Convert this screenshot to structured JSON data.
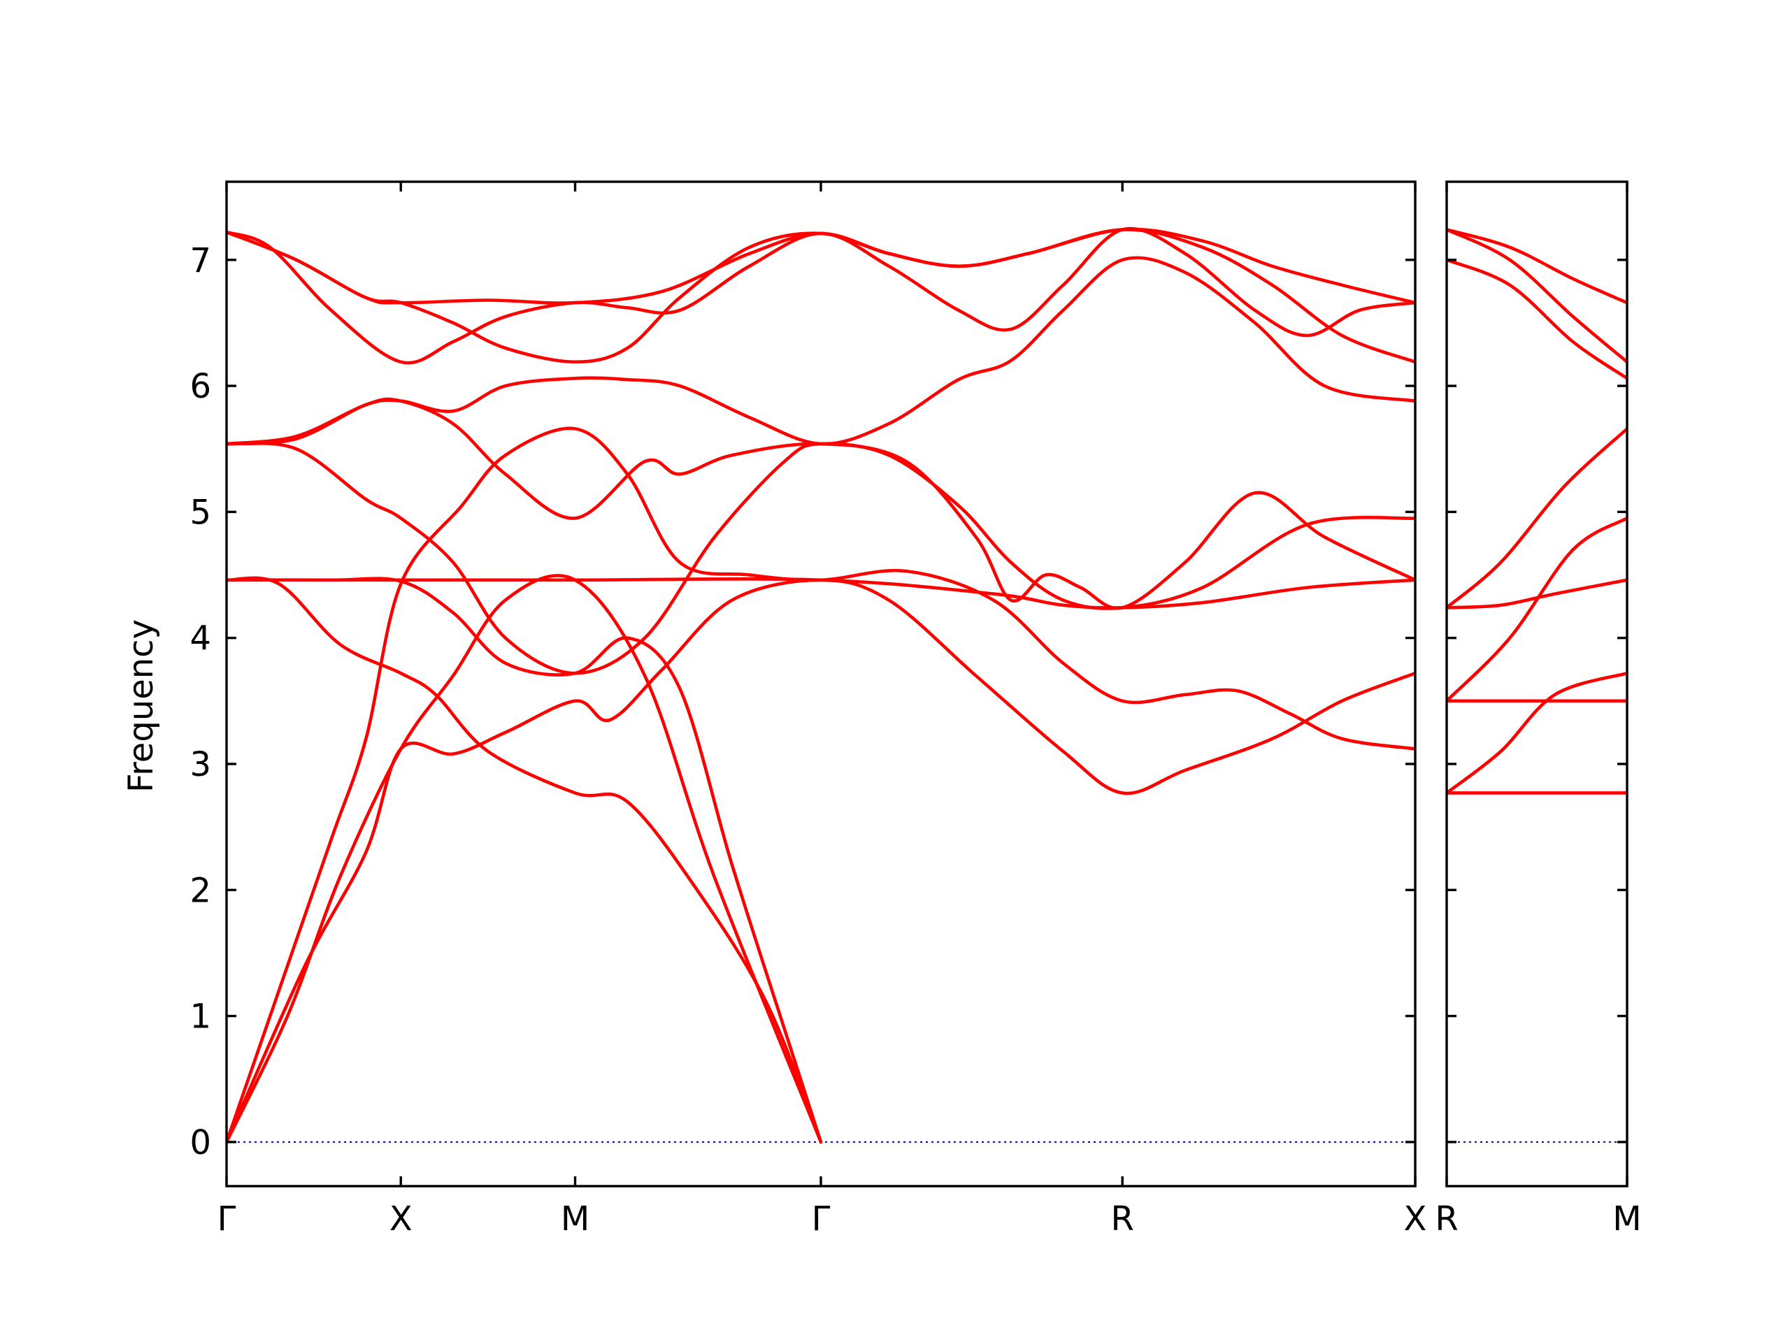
{
  "colors": {
    "band": "#ff0000",
    "zero_line": "#0000cd",
    "axis": "#000000"
  },
  "chart_data": {
    "type": "line",
    "title": "",
    "ylabel": "Frequency",
    "ylim": [
      -0.35,
      7.62
    ],
    "yticks": [
      0,
      1,
      2,
      3,
      4,
      5,
      6,
      7
    ],
    "grid": false,
    "legend": "none",
    "zero_line": {
      "y": 0,
      "style": "dotted"
    },
    "panels": [
      {
        "name": "panel-main",
        "xlim": [
          0,
          6.82
        ],
        "xticks": [
          {
            "x": 0,
            "label": "Γ"
          },
          {
            "x": 1.0,
            "label": "X"
          },
          {
            "x": 2.0,
            "label": "M"
          },
          {
            "x": 3.41,
            "label": "Γ"
          },
          {
            "x": 5.14,
            "label": "R"
          },
          {
            "x": 6.82,
            "label": "X"
          }
        ],
        "bands": [
          [
            [
              0,
              0
            ],
            [
              0.3,
              1.2
            ],
            [
              0.6,
              2.4
            ],
            [
              0.8,
              3.2
            ],
            [
              1.0,
              4.43
            ],
            [
              1.35,
              5.05
            ],
            [
              1.6,
              5.45
            ],
            [
              2.0,
              5.66
            ],
            [
              2.3,
              5.3
            ],
            [
              2.6,
              4.6
            ],
            [
              3.0,
              4.5
            ],
            [
              3.41,
              4.46
            ],
            [
              3.9,
              4.53
            ],
            [
              4.4,
              4.3
            ],
            [
              4.8,
              3.8
            ],
            [
              5.14,
              3.5
            ],
            [
              5.5,
              3.55
            ],
            [
              5.8,
              3.58
            ],
            [
              6.1,
              3.4
            ],
            [
              6.4,
              3.2
            ],
            [
              6.82,
              3.12
            ]
          ],
          [
            [
              0,
              0
            ],
            [
              0.35,
              1.0
            ],
            [
              0.65,
              2.1
            ],
            [
              1.0,
              3.12
            ],
            [
              1.3,
              3.7
            ],
            [
              1.6,
              4.3
            ],
            [
              2.0,
              4.46
            ],
            [
              2.4,
              3.7
            ],
            [
              2.8,
              2.1
            ],
            [
              3.41,
              0
            ]
          ],
          [
            [
              0,
              0
            ],
            [
              0.45,
              1.4
            ],
            [
              0.8,
              2.3
            ],
            [
              1.0,
              3.12
            ],
            [
              1.3,
              3.08
            ],
            [
              1.6,
              3.25
            ],
            [
              2.0,
              3.5
            ],
            [
              2.2,
              3.35
            ],
            [
              2.5,
              3.75
            ],
            [
              2.9,
              4.3
            ],
            [
              3.41,
              4.46
            ],
            [
              3.8,
              4.3
            ],
            [
              4.3,
              3.7
            ],
            [
              4.8,
              3.1
            ],
            [
              5.14,
              2.77
            ],
            [
              5.5,
              2.95
            ],
            [
              6.0,
              3.2
            ],
            [
              6.4,
              3.5
            ],
            [
              6.82,
              3.72
            ]
          ],
          [
            [
              0,
              4.46
            ],
            [
              0.3,
              4.43
            ],
            [
              0.65,
              3.95
            ],
            [
              1.0,
              3.72
            ],
            [
              1.2,
              3.55
            ],
            [
              1.5,
              3.1
            ],
            [
              2.0,
              2.77
            ],
            [
              2.3,
              2.7
            ],
            [
              2.7,
              2.0
            ],
            [
              3.1,
              1.1
            ],
            [
              3.41,
              0
            ]
          ],
          [
            [
              0,
              4.46
            ],
            [
              0.6,
              4.46
            ],
            [
              1.0,
              4.45
            ],
            [
              1.3,
              4.2
            ],
            [
              1.6,
              3.8
            ],
            [
              2.0,
              3.72
            ],
            [
              2.3,
              4.0
            ],
            [
              2.6,
              3.6
            ],
            [
              2.9,
              2.2
            ],
            [
              3.2,
              0.9
            ],
            [
              3.41,
              0
            ]
          ],
          [
            [
              0,
              4.46
            ],
            [
              1.0,
              4.46
            ],
            [
              2.0,
              4.46
            ],
            [
              3.41,
              4.46
            ],
            [
              4.4,
              4.35
            ],
            [
              4.8,
              4.26
            ],
            [
              5.14,
              4.24
            ],
            [
              5.6,
              4.28
            ],
            [
              6.2,
              4.4
            ],
            [
              6.82,
              4.46
            ]
          ],
          [
            [
              0,
              5.54
            ],
            [
              0.4,
              5.5
            ],
            [
              0.8,
              5.1
            ],
            [
              1.0,
              4.95
            ],
            [
              1.3,
              4.6
            ],
            [
              1.6,
              4.0
            ],
            [
              2.0,
              3.72
            ],
            [
              2.4,
              4.0
            ],
            [
              2.8,
              4.8
            ],
            [
              3.2,
              5.4
            ],
            [
              3.41,
              5.54
            ],
            [
              3.8,
              5.45
            ],
            [
              4.2,
              5.05
            ],
            [
              4.5,
              4.6
            ],
            [
              4.8,
              4.3
            ],
            [
              5.14,
              4.24
            ],
            [
              5.6,
              4.4
            ],
            [
              6.2,
              4.9
            ],
            [
              6.82,
              4.95
            ]
          ],
          [
            [
              0,
              5.54
            ],
            [
              0.4,
              5.58
            ],
            [
              0.8,
              5.85
            ],
            [
              1.0,
              5.88
            ],
            [
              1.3,
              5.7
            ],
            [
              1.6,
              5.3
            ],
            [
              2.0,
              4.95
            ],
            [
              2.4,
              5.4
            ],
            [
              2.6,
              5.3
            ],
            [
              2.9,
              5.45
            ],
            [
              3.41,
              5.54
            ],
            [
              3.9,
              5.4
            ],
            [
              4.3,
              4.8
            ],
            [
              4.5,
              4.3
            ],
            [
              4.7,
              4.5
            ],
            [
              4.9,
              4.4
            ],
            [
              5.14,
              4.24
            ],
            [
              5.5,
              4.6
            ],
            [
              5.9,
              5.15
            ],
            [
              6.3,
              4.8
            ],
            [
              6.82,
              4.46
            ]
          ],
          [
            [
              0,
              5.54
            ],
            [
              0.4,
              5.6
            ],
            [
              0.8,
              5.85
            ],
            [
              1.0,
              5.88
            ],
            [
              1.3,
              5.8
            ],
            [
              1.6,
              6.0
            ],
            [
              2.0,
              6.06
            ],
            [
              2.3,
              6.05
            ],
            [
              2.6,
              6.0
            ],
            [
              3.0,
              5.75
            ],
            [
              3.41,
              5.54
            ],
            [
              3.8,
              5.7
            ],
            [
              4.2,
              6.05
            ],
            [
              4.5,
              6.2
            ],
            [
              4.8,
              6.6
            ],
            [
              5.14,
              7.0
            ],
            [
              5.5,
              6.9
            ],
            [
              5.9,
              6.5
            ],
            [
              6.3,
              6.0
            ],
            [
              6.82,
              5.88
            ]
          ],
          [
            [
              0,
              7.22
            ],
            [
              0.25,
              7.1
            ],
            [
              0.6,
              6.6
            ],
            [
              1.0,
              6.19
            ],
            [
              1.3,
              6.35
            ],
            [
              1.6,
              6.55
            ],
            [
              2.0,
              6.66
            ],
            [
              2.3,
              6.62
            ],
            [
              2.6,
              6.6
            ],
            [
              3.0,
              6.95
            ],
            [
              3.41,
              7.21
            ],
            [
              3.8,
              6.95
            ],
            [
              4.2,
              6.6
            ],
            [
              4.5,
              6.45
            ],
            [
              4.8,
              6.8
            ],
            [
              5.14,
              7.24
            ],
            [
              5.5,
              7.05
            ],
            [
              5.9,
              6.6
            ],
            [
              6.2,
              6.4
            ],
            [
              6.5,
              6.6
            ],
            [
              6.82,
              6.66
            ]
          ],
          [
            [
              0,
              7.22
            ],
            [
              0.4,
              7.0
            ],
            [
              0.8,
              6.7
            ],
            [
              1.0,
              6.66
            ],
            [
              1.3,
              6.5
            ],
            [
              1.6,
              6.3
            ],
            [
              2.0,
              6.19
            ],
            [
              2.3,
              6.3
            ],
            [
              2.6,
              6.7
            ],
            [
              3.0,
              7.1
            ],
            [
              3.41,
              7.21
            ],
            [
              3.8,
              7.05
            ],
            [
              4.2,
              6.95
            ],
            [
              4.6,
              7.05
            ],
            [
              5.14,
              7.24
            ],
            [
              5.6,
              7.1
            ],
            [
              6.0,
              6.8
            ],
            [
              6.4,
              6.4
            ],
            [
              6.82,
              6.19
            ]
          ],
          [
            [
              0,
              7.22
            ],
            [
              0.4,
              7.0
            ],
            [
              0.8,
              6.7
            ],
            [
              1.0,
              6.66
            ],
            [
              1.5,
              6.68
            ],
            [
              2.0,
              6.66
            ],
            [
              2.5,
              6.75
            ],
            [
              3.0,
              7.05
            ],
            [
              3.41,
              7.21
            ],
            [
              3.8,
              7.05
            ],
            [
              4.2,
              6.95
            ],
            [
              4.6,
              7.05
            ],
            [
              5.14,
              7.24
            ],
            [
              5.6,
              7.15
            ],
            [
              6.0,
              6.95
            ],
            [
              6.4,
              6.8
            ],
            [
              6.82,
              6.66
            ]
          ]
        ]
      },
      {
        "name": "panel-right",
        "xlim": [
          0,
          1.0
        ],
        "xticks": [
          {
            "x": 0,
            "label": "R"
          },
          {
            "x": 1.0,
            "label": "M"
          }
        ],
        "bands": [
          [
            [
              0,
              2.77
            ],
            [
              1.0,
              2.77
            ]
          ],
          [
            [
              0,
              2.77
            ],
            [
              0.3,
              3.1
            ],
            [
              0.6,
              3.55
            ],
            [
              1.0,
              3.72
            ]
          ],
          [
            [
              0,
              3.5
            ],
            [
              1.0,
              3.5
            ]
          ],
          [
            [
              0,
              3.5
            ],
            [
              0.35,
              4.0
            ],
            [
              0.7,
              4.7
            ],
            [
              1.0,
              4.95
            ]
          ],
          [
            [
              0,
              4.24
            ],
            [
              0.3,
              4.26
            ],
            [
              0.6,
              4.35
            ],
            [
              1.0,
              4.46
            ]
          ],
          [
            [
              0,
              4.24
            ],
            [
              0.3,
              4.6
            ],
            [
              0.65,
              5.2
            ],
            [
              1.0,
              5.66
            ]
          ],
          [
            [
              0,
              7.0
            ],
            [
              0.35,
              6.8
            ],
            [
              0.7,
              6.35
            ],
            [
              1.0,
              6.06
            ]
          ],
          [
            [
              0,
              7.24
            ],
            [
              0.35,
              7.0
            ],
            [
              0.7,
              6.55
            ],
            [
              1.0,
              6.19
            ]
          ],
          [
            [
              0,
              7.24
            ],
            [
              0.35,
              7.1
            ],
            [
              0.7,
              6.85
            ],
            [
              1.0,
              6.66
            ]
          ]
        ]
      }
    ]
  }
}
